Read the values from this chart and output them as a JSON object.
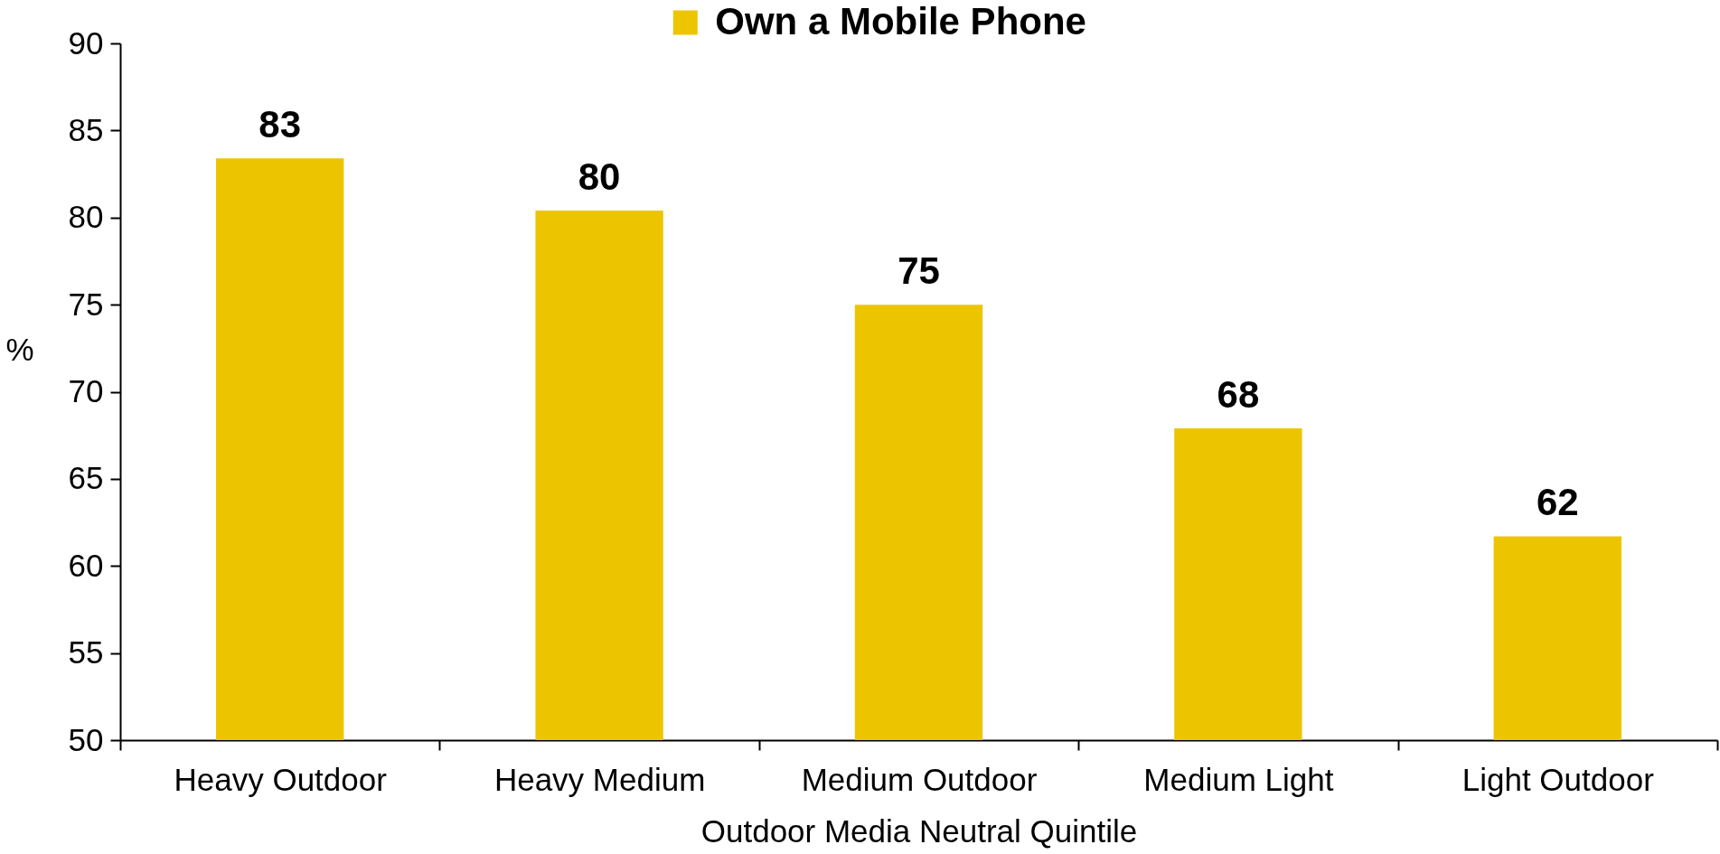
{
  "chart_data": {
    "type": "bar",
    "xlabel": "Outdoor Media Neutral Quintile",
    "ylabel": "%",
    "categories": [
      "Heavy Outdoor",
      "Heavy Medium",
      "Medium Outdoor",
      "Medium Light",
      "Light Outdoor"
    ],
    "series": [
      {
        "name": "Own a Mobile Phone",
        "color": "#ecc500",
        "values": [
          83.4,
          80.4,
          75.0,
          67.9,
          61.7
        ],
        "value_labels": [
          "83",
          "80",
          "75",
          "68",
          "62"
        ]
      }
    ],
    "ylim": [
      50,
      90
    ],
    "yticks": [
      50,
      55,
      60,
      65,
      70,
      75,
      80,
      85,
      90
    ],
    "legend": "top"
  }
}
